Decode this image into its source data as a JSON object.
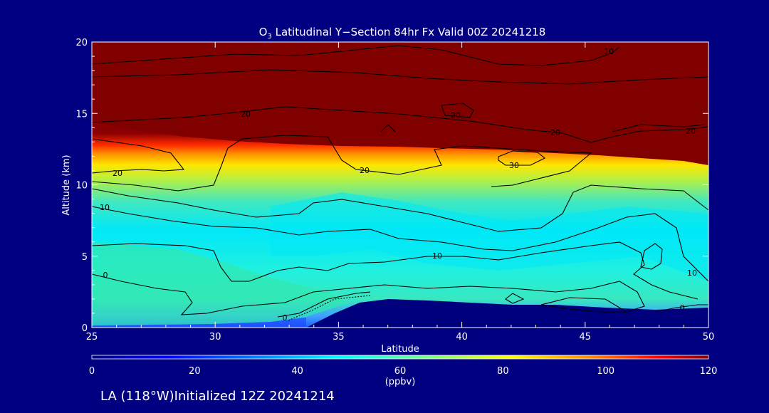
{
  "chart_data": {
    "type": "heatmap",
    "title_main": "O",
    "title_sub": "3",
    "title_rest": " Latitudinal Y−Section 84hr  Fx Valid 00Z 20241218",
    "xlabel": "Latitude",
    "ylabel": "Altitude (km)",
    "xlim": [
      25,
      50
    ],
    "ylim": [
      0,
      20
    ],
    "x_ticks": [
      "25",
      "30",
      "35",
      "40",
      "45",
      "50"
    ],
    "y_ticks": [
      "0",
      "5",
      "10",
      "15",
      "20"
    ],
    "colorbar": {
      "label": "(ppbv)",
      "range": [
        0,
        120
      ],
      "ticks": [
        "0",
        "20",
        "40",
        "60",
        "80",
        "100",
        "120"
      ]
    },
    "contour_labels": [
      "10",
      "20",
      "20",
      "20",
      "20",
      "20",
      "20",
      "30",
      "10",
      "10",
      "10",
      "0",
      "0",
      "0"
    ],
    "footer": "LA (118°W)Initialized 12Z 20241214",
    "colors": {
      "background": "#000080",
      "ground": "#00007f",
      "stratosphere": "#800000",
      "contour": "#000000"
    }
  }
}
